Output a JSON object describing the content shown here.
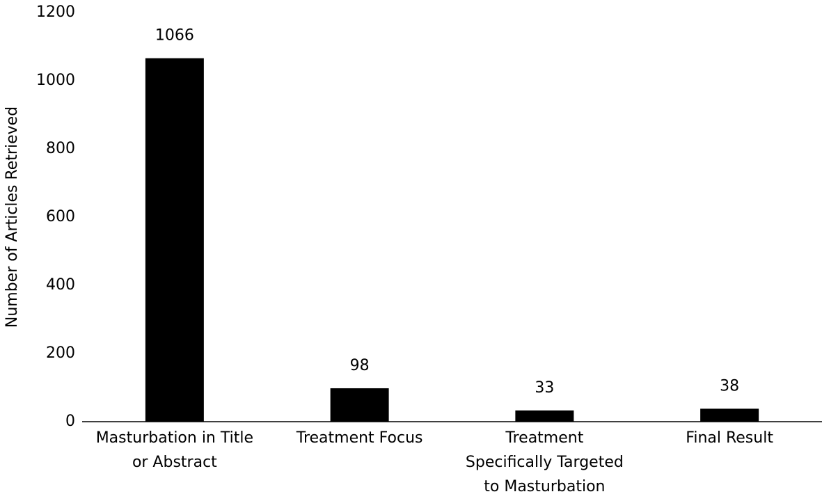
{
  "chart_data": {
    "type": "bar",
    "y_label": "Number of Articles Retrieved",
    "categories": [
      "Masturbation in Title\nor Abstract",
      "Treatment Focus",
      "Treatment\nSpecifically Targeted\nto Masturbation",
      "Final Result"
    ],
    "values": [
      1066,
      98,
      33,
      38
    ],
    "color": "#000000",
    "ylim": [
      0,
      1200
    ],
    "yticks": [
      0,
      200,
      400,
      600,
      800,
      1000,
      1200
    ],
    "grid": false
  }
}
